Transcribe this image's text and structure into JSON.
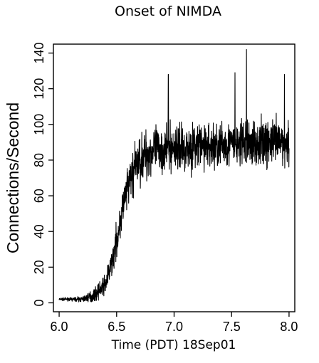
{
  "chart_data": {
    "type": "line",
    "title": "Onset of NIMDA",
    "xlabel": "Time (PDT) 18Sep01",
    "ylabel": "Connections/Second",
    "xlim": [
      5.95,
      8.05
    ],
    "ylim": [
      -5,
      145
    ],
    "x_ticks": [
      6.0,
      6.5,
      7.0,
      7.5,
      8.0
    ],
    "x_tick_labels": [
      "6.0",
      "6.5",
      "7.0",
      "7.5",
      "8.0"
    ],
    "y_ticks": [
      0,
      20,
      40,
      60,
      80,
      100,
      120,
      140
    ],
    "y_tick_labels": [
      "0",
      "20",
      "40",
      "60",
      "80",
      "100",
      "120",
      "140"
    ],
    "grid": false,
    "color": "#000000",
    "series": [
      {
        "x": [
          6.0,
          6.1,
          6.2,
          6.3,
          6.4,
          6.45,
          6.5,
          6.55,
          6.6,
          6.65,
          6.7,
          6.75,
          6.8,
          6.9,
          7.0,
          7.1,
          7.2,
          7.3,
          7.4,
          7.5,
          7.6,
          7.63,
          7.7,
          7.8,
          7.9,
          8.0
        ],
        "y": [
          2,
          2,
          2,
          4,
          10,
          20,
          35,
          52,
          65,
          75,
          80,
          83,
          85,
          86,
          87,
          87,
          88,
          88,
          88,
          89,
          89,
          90,
          89,
          90,
          90,
          90
        ],
        "spread": [
          1,
          1,
          2,
          4,
          7,
          9,
          11,
          13,
          15,
          16,
          17,
          17,
          17,
          16,
          16,
          16,
          16,
          16,
          16,
          16,
          16,
          16,
          16,
          16,
          16,
          16
        ],
        "peaks": [
          {
            "x": 7.63,
            "y": 142
          },
          {
            "x": 7.53,
            "y": 129
          },
          {
            "x": 7.96,
            "y": 128
          },
          {
            "x": 6.95,
            "y": 128
          }
        ]
      }
    ]
  }
}
